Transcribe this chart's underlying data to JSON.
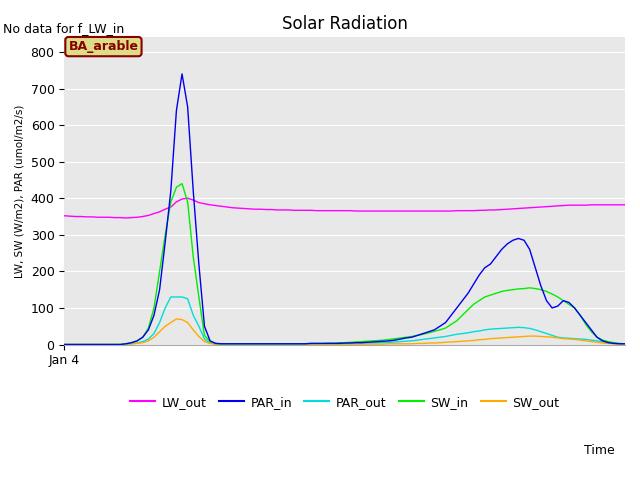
{
  "title": "Solar Radiation",
  "top_left_text": "No data for f_LW_in",
  "ylabel": "LW, SW (W/m2), PAR (umol/m2/s)",
  "xlabel": "Time",
  "x_tick_label": "Jan 4",
  "ylim": [
    0,
    840
  ],
  "yticks": [
    0,
    100,
    200,
    300,
    400,
    500,
    600,
    700,
    800
  ],
  "xlim": [
    0,
    100
  ],
  "legend_labels": [
    "LW_out",
    "PAR_in",
    "PAR_out",
    "SW_in",
    "SW_out"
  ],
  "legend_colors": [
    "#ff00ff",
    "#0000ee",
    "#00dddd",
    "#00ee00",
    "#ffaa00"
  ],
  "ba_arable_box_facecolor": "#dddd88",
  "ba_arable_box_edgecolor": "#880000",
  "ba_arable_text_color": "#880000",
  "plot_bg_color": "#e8e8e8",
  "fig_bg_color": "#ffffff",
  "grid_color": "#ffffff",
  "series": {
    "LW_out": {
      "color": "#ff00ff",
      "x": [
        0,
        1,
        2,
        3,
        4,
        5,
        6,
        7,
        8,
        9,
        10,
        11,
        12,
        13,
        14,
        15,
        16,
        17,
        18,
        19,
        20,
        21,
        22,
        23,
        24,
        25,
        26,
        27,
        28,
        29,
        30,
        31,
        32,
        33,
        34,
        35,
        36,
        37,
        38,
        39,
        40,
        41,
        42,
        43,
        44,
        45,
        46,
        47,
        48,
        49,
        50,
        51,
        52,
        53,
        54,
        55,
        56,
        57,
        58,
        59,
        60,
        61,
        62,
        63,
        64,
        65,
        66,
        67,
        68,
        69,
        70,
        71,
        72,
        73,
        74,
        75,
        76,
        77,
        78,
        79,
        80,
        81,
        82,
        83,
        84,
        85,
        86,
        87,
        88,
        89,
        90,
        91,
        92,
        93,
        94,
        95,
        96,
        97,
        98,
        99,
        100
      ],
      "y": [
        352,
        351,
        350,
        350,
        349,
        349,
        348,
        348,
        348,
        347,
        347,
        346,
        347,
        348,
        350,
        353,
        358,
        363,
        370,
        376,
        390,
        398,
        400,
        395,
        388,
        385,
        382,
        380,
        378,
        376,
        374,
        373,
        372,
        371,
        370,
        370,
        369,
        369,
        368,
        368,
        368,
        367,
        367,
        367,
        367,
        366,
        366,
        366,
        366,
        366,
        366,
        366,
        365,
        365,
        365,
        365,
        365,
        365,
        365,
        365,
        365,
        365,
        365,
        365,
        365,
        365,
        365,
        365,
        365,
        365,
        366,
        366,
        366,
        366,
        367,
        367,
        368,
        368,
        369,
        370,
        371,
        372,
        373,
        374,
        375,
        376,
        377,
        378,
        379,
        380,
        381,
        381,
        381,
        381,
        382,
        382,
        382,
        382,
        382,
        382,
        382
      ]
    },
    "PAR_in": {
      "color": "#0000ee",
      "x": [
        0,
        1,
        2,
        3,
        4,
        5,
        6,
        7,
        8,
        9,
        10,
        11,
        12,
        13,
        14,
        15,
        16,
        17,
        18,
        19,
        20,
        21,
        22,
        23,
        24,
        25,
        26,
        27,
        28,
        29,
        30,
        31,
        32,
        33,
        34,
        35,
        36,
        37,
        38,
        39,
        40,
        41,
        42,
        43,
        44,
        45,
        46,
        47,
        48,
        49,
        50,
        51,
        52,
        53,
        54,
        55,
        56,
        57,
        58,
        59,
        60,
        61,
        62,
        63,
        64,
        65,
        66,
        67,
        68,
        69,
        70,
        71,
        72,
        73,
        74,
        75,
        76,
        77,
        78,
        79,
        80,
        81,
        82,
        83,
        84,
        85,
        86,
        87,
        88,
        89,
        90,
        91,
        92,
        93,
        94,
        95,
        96,
        97,
        98,
        99,
        100
      ],
      "y": [
        0,
        0,
        0,
        0,
        0,
        0,
        0,
        0,
        0,
        0,
        0,
        2,
        5,
        10,
        20,
        40,
        80,
        150,
        280,
        420,
        640,
        740,
        650,
        420,
        220,
        50,
        10,
        3,
        2,
        2,
        2,
        2,
        2,
        2,
        2,
        2,
        2,
        2,
        2,
        2,
        2,
        2,
        2,
        2,
        3,
        3,
        3,
        3,
        3,
        3,
        4,
        4,
        5,
        5,
        6,
        7,
        8,
        9,
        10,
        12,
        15,
        18,
        20,
        25,
        30,
        35,
        40,
        50,
        60,
        80,
        100,
        120,
        140,
        165,
        190,
        210,
        220,
        240,
        260,
        275,
        285,
        290,
        285,
        260,
        210,
        160,
        120,
        100,
        105,
        120,
        115,
        100,
        80,
        60,
        40,
        20,
        10,
        5,
        3,
        2,
        2
      ]
    },
    "PAR_out": {
      "color": "#00dddd",
      "x": [
        0,
        1,
        2,
        3,
        4,
        5,
        6,
        7,
        8,
        9,
        10,
        11,
        12,
        13,
        14,
        15,
        16,
        17,
        18,
        19,
        20,
        21,
        22,
        23,
        24,
        25,
        26,
        27,
        28,
        29,
        30,
        31,
        32,
        33,
        34,
        35,
        36,
        37,
        38,
        39,
        40,
        41,
        42,
        43,
        44,
        45,
        46,
        47,
        48,
        49,
        50,
        51,
        52,
        53,
        54,
        55,
        56,
        57,
        58,
        59,
        60,
        61,
        62,
        63,
        64,
        65,
        66,
        67,
        68,
        69,
        70,
        71,
        72,
        73,
        74,
        75,
        76,
        77,
        78,
        79,
        80,
        81,
        82,
        83,
        84,
        85,
        86,
        87,
        88,
        89,
        90,
        91,
        92,
        93,
        94,
        95,
        96,
        97,
        98,
        99,
        100
      ],
      "y": [
        0,
        0,
        0,
        0,
        0,
        0,
        0,
        0,
        0,
        0,
        0,
        1,
        2,
        4,
        8,
        15,
        30,
        60,
        100,
        130,
        130,
        130,
        125,
        80,
        50,
        15,
        4,
        2,
        1,
        1,
        1,
        1,
        1,
        1,
        1,
        1,
        1,
        1,
        1,
        1,
        1,
        1,
        1,
        1,
        1,
        2,
        2,
        2,
        2,
        2,
        2,
        3,
        3,
        3,
        4,
        4,
        5,
        5,
        6,
        7,
        8,
        9,
        10,
        12,
        14,
        16,
        18,
        20,
        22,
        25,
        28,
        30,
        32,
        35,
        37,
        40,
        42,
        43,
        44,
        45,
        46,
        47,
        46,
        44,
        40,
        35,
        30,
        25,
        20,
        18,
        17,
        16,
        15,
        14,
        12,
        10,
        8,
        5,
        3,
        2,
        1
      ]
    },
    "SW_in": {
      "color": "#00ee00",
      "x": [
        0,
        1,
        2,
        3,
        4,
        5,
        6,
        7,
        8,
        9,
        10,
        11,
        12,
        13,
        14,
        15,
        16,
        17,
        18,
        19,
        20,
        21,
        22,
        23,
        24,
        25,
        26,
        27,
        28,
        29,
        30,
        31,
        32,
        33,
        34,
        35,
        36,
        37,
        38,
        39,
        40,
        41,
        42,
        43,
        44,
        45,
        46,
        47,
        48,
        49,
        50,
        51,
        52,
        53,
        54,
        55,
        56,
        57,
        58,
        59,
        60,
        61,
        62,
        63,
        64,
        65,
        66,
        67,
        68,
        69,
        70,
        71,
        72,
        73,
        74,
        75,
        76,
        77,
        78,
        79,
        80,
        81,
        82,
        83,
        84,
        85,
        86,
        87,
        88,
        89,
        90,
        91,
        92,
        93,
        94,
        95,
        96,
        97,
        98,
        99,
        100
      ],
      "y": [
        0,
        0,
        0,
        0,
        0,
        0,
        0,
        0,
        0,
        0,
        0,
        2,
        5,
        10,
        20,
        45,
        100,
        200,
        300,
        390,
        430,
        440,
        390,
        240,
        130,
        25,
        8,
        3,
        2,
        2,
        2,
        2,
        2,
        2,
        2,
        2,
        2,
        2,
        2,
        2,
        2,
        2,
        2,
        2,
        3,
        3,
        3,
        4,
        4,
        5,
        5,
        6,
        7,
        8,
        9,
        10,
        11,
        12,
        14,
        16,
        18,
        20,
        22,
        25,
        28,
        32,
        36,
        40,
        45,
        55,
        65,
        80,
        95,
        110,
        120,
        130,
        135,
        140,
        145,
        148,
        150,
        152,
        153,
        155,
        153,
        150,
        145,
        138,
        130,
        120,
        110,
        100,
        80,
        55,
        35,
        20,
        12,
        8,
        5,
        3,
        2
      ]
    },
    "SW_out": {
      "color": "#ffaa00",
      "x": [
        0,
        1,
        2,
        3,
        4,
        5,
        6,
        7,
        8,
        9,
        10,
        11,
        12,
        13,
        14,
        15,
        16,
        17,
        18,
        19,
        20,
        21,
        22,
        23,
        24,
        25,
        26,
        27,
        28,
        29,
        30,
        31,
        32,
        33,
        34,
        35,
        36,
        37,
        38,
        39,
        40,
        41,
        42,
        43,
        44,
        45,
        46,
        47,
        48,
        49,
        50,
        51,
        52,
        53,
        54,
        55,
        56,
        57,
        58,
        59,
        60,
        61,
        62,
        63,
        64,
        65,
        66,
        67,
        68,
        69,
        70,
        71,
        72,
        73,
        74,
        75,
        76,
        77,
        78,
        79,
        80,
        81,
        82,
        83,
        84,
        85,
        86,
        87,
        88,
        89,
        90,
        91,
        92,
        93,
        94,
        95,
        96,
        97,
        98,
        99,
        100
      ],
      "y": [
        0,
        0,
        0,
        0,
        0,
        0,
        0,
        0,
        0,
        0,
        0,
        1,
        2,
        3,
        5,
        10,
        20,
        35,
        50,
        60,
        70,
        68,
        60,
        40,
        22,
        8,
        3,
        1,
        1,
        1,
        1,
        1,
        1,
        1,
        1,
        1,
        1,
        1,
        1,
        1,
        1,
        1,
        1,
        1,
        1,
        1,
        1,
        1,
        1,
        1,
        1,
        1,
        1,
        1,
        1,
        1,
        1,
        1,
        2,
        2,
        2,
        2,
        2,
        3,
        3,
        4,
        4,
        5,
        6,
        7,
        8,
        9,
        10,
        11,
        13,
        14,
        16,
        17,
        18,
        19,
        20,
        21,
        22,
        23,
        23,
        22,
        21,
        20,
        18,
        16,
        15,
        14,
        12,
        10,
        8,
        6,
        4,
        3,
        2,
        1,
        1
      ]
    }
  }
}
